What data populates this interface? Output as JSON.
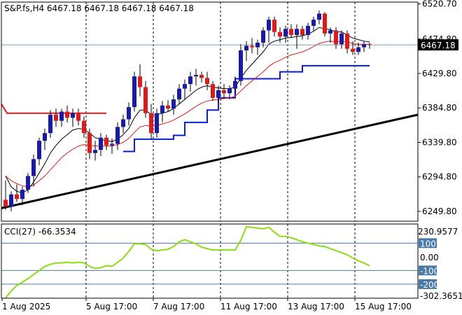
{
  "chart_data": {
    "type": "candlestick",
    "colors": {
      "background": "#ffffff",
      "frame": "#000000",
      "grid": "#000000",
      "bull_body": "#1a1aa8",
      "bear_body": "#e01a1a",
      "wick": "#000000",
      "ema_fast": "#000000",
      "ema_slow": "#e01a1a",
      "trail_stop": "#0a1ed2",
      "resistance": "#e01a1a",
      "trendline": "#000000",
      "cci": "#8cdc14",
      "cci_levels": "#4a7aa8",
      "price_label_bg": "#000000",
      "price_label_fg": "#ffffff",
      "cci_label_bg": "#4a7aa8",
      "cci_label_fg": "#ffffff"
    },
    "price_panel": {
      "header": "S&P.fs,H4  6467.18 6467.18 6467.18 6467.18",
      "ylim": [
        6237,
        6523
      ],
      "y_ticks": [
        "6520.70",
        "6474.80",
        "6429.80",
        "6384.80",
        "6339.80",
        "6294.80",
        "6249.80"
      ],
      "y_tick_values": [
        6520.7,
        6474.8,
        6429.8,
        6384.8,
        6339.8,
        6294.8,
        6249.8
      ],
      "last_price": "6467.18",
      "last_price_value": 6467.18,
      "candles": [
        [
          6265,
          6290,
          6252,
          6256
        ],
        [
          6256,
          6276,
          6250,
          6272
        ],
        [
          6272,
          6285,
          6262,
          6266
        ],
        [
          6266,
          6282,
          6258,
          6278
        ],
        [
          6278,
          6300,
          6274,
          6296
        ],
        [
          6296,
          6324,
          6282,
          6318
        ],
        [
          6318,
          6346,
          6310,
          6342
        ],
        [
          6342,
          6358,
          6330,
          6352
        ],
        [
          6352,
          6382,
          6346,
          6376
        ],
        [
          6376,
          6384,
          6360,
          6368
        ],
        [
          6368,
          6384,
          6360,
          6380
        ],
        [
          6380,
          6388,
          6366,
          6372
        ],
        [
          6372,
          6384,
          6360,
          6378
        ],
        [
          6378,
          6384,
          6362,
          6368
        ],
        [
          6368,
          6374,
          6346,
          6352
        ],
        [
          6352,
          6358,
          6318,
          6326
        ],
        [
          6326,
          6342,
          6316,
          6330
        ],
        [
          6330,
          6352,
          6322,
          6346
        ],
        [
          6346,
          6350,
          6330,
          6336
        ],
        [
          6336,
          6345,
          6325,
          6338
        ],
        [
          6338,
          6366,
          6330,
          6360
        ],
        [
          6360,
          6376,
          6352,
          6370
        ],
        [
          6370,
          6392,
          6362,
          6386
        ],
        [
          6386,
          6432,
          6380,
          6426
        ],
        [
          6426,
          6442,
          6400,
          6412
        ],
        [
          6412,
          6420,
          6372,
          6378
        ],
        [
          6378,
          6390,
          6344,
          6352
        ],
        [
          6352,
          6384,
          6346,
          6378
        ],
        [
          6378,
          6394,
          6366,
          6388
        ],
        [
          6388,
          6395,
          6380,
          6384
        ],
        [
          6384,
          6402,
          6376,
          6396
        ],
        [
          6396,
          6416,
          6390,
          6410
        ],
        [
          6410,
          6422,
          6396,
          6416
        ],
        [
          6416,
          6432,
          6406,
          6426
        ],
        [
          6426,
          6436,
          6414,
          6428
        ],
        [
          6428,
          6432,
          6418,
          6424
        ],
        [
          6424,
          6432,
          6408,
          6416
        ],
        [
          6416,
          6420,
          6394,
          6398
        ],
        [
          6398,
          6414,
          6392,
          6408
        ],
        [
          6408,
          6416,
          6398,
          6404
        ],
        [
          6404,
          6414,
          6396,
          6410
        ],
        [
          6410,
          6426,
          6404,
          6420
        ],
        [
          6420,
          6468,
          6414,
          6460
        ],
        [
          6460,
          6472,
          6446,
          6466
        ],
        [
          6466,
          6476,
          6456,
          6464
        ],
        [
          6464,
          6474,
          6454,
          6470
        ],
        [
          6470,
          6490,
          6464,
          6486
        ],
        [
          6486,
          6504,
          6470,
          6500
        ],
        [
          6500,
          6504,
          6478,
          6484
        ],
        [
          6484,
          6490,
          6470,
          6478
        ],
        [
          6478,
          6492,
          6470,
          6488
        ],
        [
          6488,
          6494,
          6476,
          6480
        ],
        [
          6480,
          6494,
          6462,
          6488
        ],
        [
          6488,
          6492,
          6474,
          6480
        ],
        [
          6480,
          6496,
          6474,
          6492
        ],
        [
          6492,
          6504,
          6486,
          6500
        ],
        [
          6500,
          6512,
          6494,
          6508
        ],
        [
          6508,
          6510,
          6478,
          6482
        ],
        [
          6482,
          6490,
          6470,
          6486
        ],
        [
          6486,
          6490,
          6462,
          6468
        ],
        [
          6468,
          6486,
          6462,
          6482
        ],
        [
          6482,
          6486,
          6456,
          6462
        ],
        [
          6462,
          6472,
          6454,
          6458
        ],
        [
          6458,
          6470,
          6454,
          6464
        ],
        [
          6464,
          6472,
          6458,
          6468
        ],
        [
          6468,
          6470,
          6462,
          6467.18
        ]
      ],
      "ema_fast": [
        6296,
        6282,
        6276,
        6274,
        6278,
        6288,
        6300,
        6312,
        6326,
        6336,
        6344,
        6350,
        6356,
        6358,
        6357,
        6352,
        6346,
        6344,
        6342,
        6341,
        6344,
        6350,
        6358,
        6372,
        6382,
        6382,
        6376,
        6376,
        6378,
        6380,
        6384,
        6390,
        6396,
        6402,
        6408,
        6412,
        6414,
        6412,
        6411,
        6410,
        6410,
        6412,
        6424,
        6434,
        6442,
        6450,
        6458,
        6468,
        6472,
        6474,
        6476,
        6477,
        6478,
        6479,
        6481,
        6485,
        6490,
        6488,
        6487,
        6484,
        6484,
        6480,
        6476,
        6474,
        6472,
        6471
      ],
      "ema_slow": [
        6296,
        6290,
        6286,
        6283,
        6282,
        6284,
        6290,
        6296,
        6304,
        6312,
        6320,
        6326,
        6331,
        6335,
        6337,
        6336,
        6335,
        6335,
        6335,
        6335,
        6337,
        6340,
        6345,
        6353,
        6360,
        6362,
        6361,
        6362,
        6364,
        6366,
        6369,
        6373,
        6377,
        6382,
        6387,
        6391,
        6394,
        6395,
        6396,
        6397,
        6398,
        6400,
        6407,
        6414,
        6420,
        6426,
        6432,
        6439,
        6444,
        6447,
        6451,
        6454,
        6456,
        6458,
        6461,
        6465,
        6469,
        6471,
        6472,
        6471,
        6472,
        6471,
        6469,
        6468,
        6468,
        6468
      ],
      "trail_stop_steps": [
        [
          21,
          6328
        ],
        [
          23,
          6344
        ],
        [
          29,
          6344
        ],
        [
          30,
          6349
        ],
        [
          32,
          6366
        ],
        [
          35,
          6366
        ],
        [
          36,
          6382
        ],
        [
          37,
          6382
        ],
        [
          38,
          6398
        ],
        [
          41,
          6423
        ],
        [
          47,
          6423
        ],
        [
          49,
          6432
        ],
        [
          51,
          6432
        ],
        [
          53,
          6440
        ],
        [
          65,
          6440
        ]
      ],
      "resistance": {
        "x0": 0,
        "x1": 18,
        "y": 6378,
        "start_y": 6390
      },
      "trendline": {
        "x0": 0,
        "y0": 6254,
        "x1": 70,
        "y1": 6376
      }
    },
    "cci_panel": {
      "header": "CCI(27) -66.3534",
      "ylim": [
        -303,
        240
      ],
      "right_labels": [
        "230.9577",
        "100",
        "0.00",
        "-100",
        "-200",
        "-302.3651"
      ],
      "levels": [
        100,
        -100,
        -200
      ],
      "boxed_levels": [
        "100",
        "-100",
        "-200"
      ],
      "values": [
        -302,
        -250,
        -210,
        -185,
        -160,
        -130,
        -100,
        -70,
        -55,
        -45,
        -45,
        -40,
        -45,
        -40,
        -45,
        -70,
        -85,
        -80,
        -65,
        -70,
        -40,
        -10,
        40,
        95,
        95,
        90,
        55,
        45,
        50,
        55,
        75,
        110,
        125,
        110,
        95,
        70,
        60,
        50,
        50,
        50,
        50,
        50,
        120,
        220,
        215,
        210,
        205,
        215,
        180,
        150,
        150,
        140,
        125,
        110,
        100,
        90,
        80,
        75,
        60,
        45,
        30,
        15,
        -10,
        -30,
        -45,
        -66.35
      ]
    },
    "x_axis": {
      "ticks": [
        {
          "label": "1 Aug 2025",
          "index": 0
        },
        {
          "label": "5 Aug 17:00",
          "index": 15
        },
        {
          "label": "7 Aug 17:00",
          "index": 27
        },
        {
          "label": "11 Aug 17:00",
          "index": 39
        },
        {
          "label": "13 Aug 17:00",
          "index": 51
        },
        {
          "label": "15 Aug 17:00",
          "index": 63
        }
      ]
    }
  }
}
